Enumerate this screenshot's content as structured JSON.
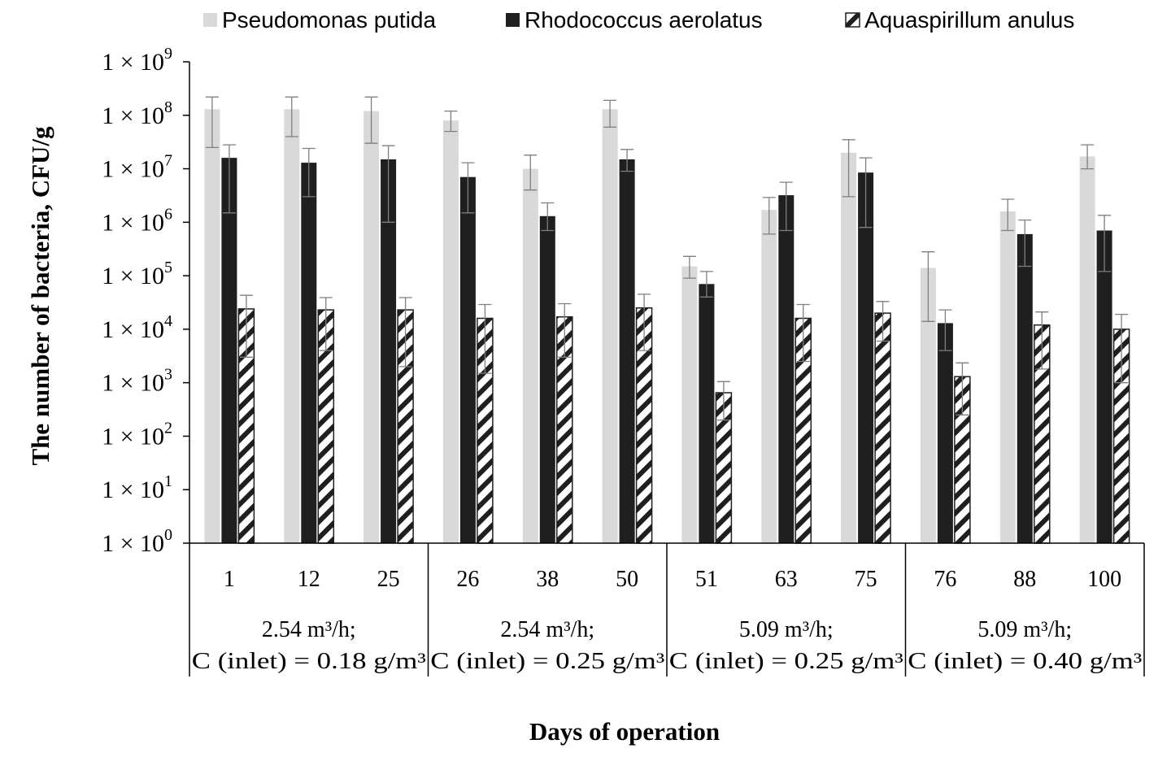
{
  "chart_data": {
    "type": "bar",
    "ylabel": "The number of bacteria, CFU/g",
    "xlabel": "Days of operation",
    "yscale": "log",
    "ylim": [
      1,
      1000000000
    ],
    "ytick_labels": [
      "1 × 10",
      "1 × 10",
      "1 × 10",
      "1 × 10",
      "1 × 10",
      "1 × 10",
      "1 × 10",
      "1 × 10",
      "1 × 10",
      "1 × 10"
    ],
    "ytick_exponents": [
      "0",
      "1",
      "2",
      "3",
      "4",
      "5",
      "6",
      "7",
      "8",
      "9"
    ],
    "ytick_values": [
      1,
      10,
      100,
      1000,
      10000,
      100000,
      1000000,
      10000000,
      100000000,
      1000000000
    ],
    "grid": false,
    "legend_position": "top",
    "categories": [
      "1",
      "12",
      "25",
      "26",
      "38",
      "50",
      "51",
      "63",
      "75",
      "76",
      "88",
      "100"
    ],
    "groups": [
      {
        "line1": "2.54 m³/h;",
        "line2": "C (inlet) = 0.18 g/m³",
        "span": [
          0,
          2
        ]
      },
      {
        "line1": "2.54 m³/h;",
        "line2": "C (inlet) = 0.25 g/m³",
        "span": [
          3,
          5
        ]
      },
      {
        "line1": "5.09 m³/h;",
        "line2": "C (inlet) = 0.25 g/m³",
        "span": [
          6,
          8
        ]
      },
      {
        "line1": "5.09 m³/h;",
        "line2": "C (inlet) = 0.40 g/m³",
        "span": [
          9,
          11
        ]
      }
    ],
    "series": [
      {
        "name": "Pseudomonas putida",
        "color": "#d9d9d9",
        "fill": "solid",
        "values": [
          130000000,
          130000000,
          120000000,
          80000000,
          10000000,
          130000000,
          150000,
          1700000,
          20000000,
          140000,
          1600000,
          17000000
        ],
        "err_low": [
          25000000,
          40000000,
          30000000,
          50000000,
          4000000,
          60000000,
          90000,
          600000,
          3000000,
          14000,
          700000,
          10000000
        ],
        "err_high": [
          220000000,
          220000000,
          220000000,
          120000000,
          18000000,
          190000000,
          230000,
          2900000,
          35000000,
          280000,
          2700000,
          28000000
        ]
      },
      {
        "name": "Rhodococcus aerolatus",
        "color": "#1f1f1f",
        "fill": "solid",
        "values": [
          16000000,
          13000000,
          15000000,
          7000000,
          1300000,
          15000000,
          70000,
          3200000,
          8500000,
          13000,
          600000,
          700000
        ],
        "err_low": [
          1500000,
          3000000,
          1000000,
          1500000,
          700000,
          9000000,
          40000,
          700000,
          800000,
          4000,
          150000,
          120000
        ],
        "err_high": [
          28000000,
          24000000,
          27000000,
          13000000,
          2300000,
          23000000,
          120000,
          5600000,
          16000000,
          23000,
          1100000,
          1350000
        ]
      },
      {
        "name": "Aquaspirillum anulus",
        "color": "#1f1f1f",
        "fill": "hatched",
        "values": [
          24000,
          23000,
          23000,
          16000,
          17000,
          25000,
          650,
          16000,
          20000,
          1300,
          12000,
          10000
        ],
        "err_low": [
          3000,
          4000,
          2000,
          1500,
          3000,
          4000,
          200,
          2500,
          6000,
          250,
          1800,
          1000
        ],
        "err_high": [
          43000,
          39000,
          39000,
          29000,
          30000,
          45000,
          1050,
          29000,
          33000,
          2350,
          21000,
          19000
        ]
      }
    ]
  }
}
